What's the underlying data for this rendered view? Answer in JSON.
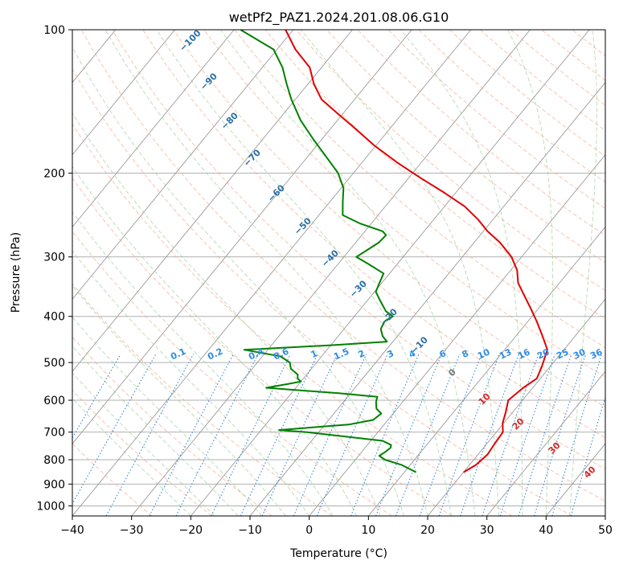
{
  "chart_data": {
    "type": "line",
    "title": "wetPf2_PAZ1.2024.201.08.06.G10",
    "xlabel": "Temperature (°C)",
    "ylabel": "Pressure (hPa)",
    "x_axis_type": "skewed temperature",
    "y_axis_type": "log pressure",
    "xlim": [
      -40,
      50
    ],
    "ylim": [
      1050,
      100
    ],
    "xticks": [
      "−40",
      "−30",
      "−20",
      "−10",
      "0",
      "10",
      "20",
      "30",
      "40",
      "50"
    ],
    "yticks": [
      "1000",
      "900",
      "800",
      "700",
      "600",
      "500",
      "400",
      "300",
      "200",
      "100"
    ],
    "grid": true,
    "series": [
      {
        "role": "temperature",
        "color": "#e00000",
        "points": [
          [
            850,
            20.0
          ],
          [
            820,
            21.1
          ],
          [
            780,
            21.6
          ],
          [
            740,
            21.3
          ],
          [
            700,
            21.1
          ],
          [
            670,
            19.8
          ],
          [
            635,
            18.8
          ],
          [
            600,
            17.6
          ],
          [
            565,
            18.4
          ],
          [
            540,
            19.4
          ],
          [
            510,
            18.6
          ],
          [
            470,
            17.2
          ],
          [
            440,
            14.5
          ],
          [
            410,
            11.5
          ],
          [
            385,
            8.7
          ],
          [
            360,
            5.6
          ],
          [
            340,
            3.0
          ],
          [
            320,
            1.1
          ],
          [
            300,
            -1.7
          ],
          [
            280,
            -5.6
          ],
          [
            265,
            -9.3
          ],
          [
            250,
            -12.6
          ],
          [
            235,
            -16.6
          ],
          [
            220,
            -21.9
          ],
          [
            205,
            -27.9
          ],
          [
            190,
            -34.1
          ],
          [
            175,
            -40.3
          ],
          [
            160,
            -46.4
          ],
          [
            150,
            -50.9
          ],
          [
            140,
            -55.6
          ],
          [
            130,
            -59.0
          ],
          [
            120,
            -62.0
          ],
          [
            110,
            -66.9
          ],
          [
            100,
            -71.3
          ]
        ]
      },
      {
        "role": "dewpoint",
        "color": "#008000",
        "points": [
          [
            850,
            12.0
          ],
          [
            820,
            8.5
          ],
          [
            800,
            5.0
          ],
          [
            785,
            3.5
          ],
          [
            770,
            4.0
          ],
          [
            755,
            4.3
          ],
          [
            745,
            4.0
          ],
          [
            730,
            2.0
          ],
          [
            715,
            -5.0
          ],
          [
            700,
            -12.0
          ],
          [
            693,
            -17.0
          ],
          [
            688,
            -14.0
          ],
          [
            675,
            -6.0
          ],
          [
            660,
            -2.5
          ],
          [
            640,
            -2.0
          ],
          [
            625,
            -3.5
          ],
          [
            605,
            -4.5
          ],
          [
            590,
            -5.0
          ],
          [
            580,
            -12.0
          ],
          [
            565,
            -25.0
          ],
          [
            555,
            -22.0
          ],
          [
            548,
            -20.0
          ],
          [
            540,
            -21.0
          ],
          [
            530,
            -21.5
          ],
          [
            515,
            -23.5
          ],
          [
            500,
            -24.5
          ],
          [
            485,
            -27.0
          ],
          [
            470,
            -34.0
          ],
          [
            460,
            -20.0
          ],
          [
            452,
            -11.0
          ],
          [
            440,
            -12.5
          ],
          [
            425,
            -13.8
          ],
          [
            410,
            -14.2
          ],
          [
            400,
            -13.5
          ],
          [
            390,
            -15.4
          ],
          [
            370,
            -17.9
          ],
          [
            355,
            -19.8
          ],
          [
            340,
            -20.4
          ],
          [
            325,
            -21.0
          ],
          [
            310,
            -25.0
          ],
          [
            300,
            -27.9
          ],
          [
            290,
            -27.0
          ],
          [
            280,
            -26.1
          ],
          [
            270,
            -25.9
          ],
          [
            265,
            -27.0
          ],
          [
            255,
            -32.0
          ],
          [
            245,
            -36.0
          ],
          [
            230,
            -37.8
          ],
          [
            215,
            -39.6
          ],
          [
            200,
            -42.6
          ],
          [
            185,
            -46.8
          ],
          [
            170,
            -51.4
          ],
          [
            155,
            -56.2
          ],
          [
            140,
            -60.7
          ],
          [
            130,
            -63.6
          ],
          [
            120,
            -66.6
          ],
          [
            110,
            -70.6
          ],
          [
            100,
            -78.9
          ]
        ]
      }
    ],
    "dry_adiabat_labels": [
      "−100",
      "−90",
      "−80",
      "−70",
      "−60",
      "−50",
      "−40",
      "−30",
      "−20",
      "−10"
    ],
    "mixing_ratio_labels": [
      "0.1",
      "0.2",
      "0.4",
      "0.6",
      "1",
      "1.5",
      "2",
      "3",
      "4",
      "6",
      "8",
      "10",
      "13",
      "16",
      "20",
      "25",
      "30",
      "36"
    ],
    "moist_adiabat_labels": [
      "0",
      "10",
      "20",
      "30",
      "40"
    ]
  }
}
